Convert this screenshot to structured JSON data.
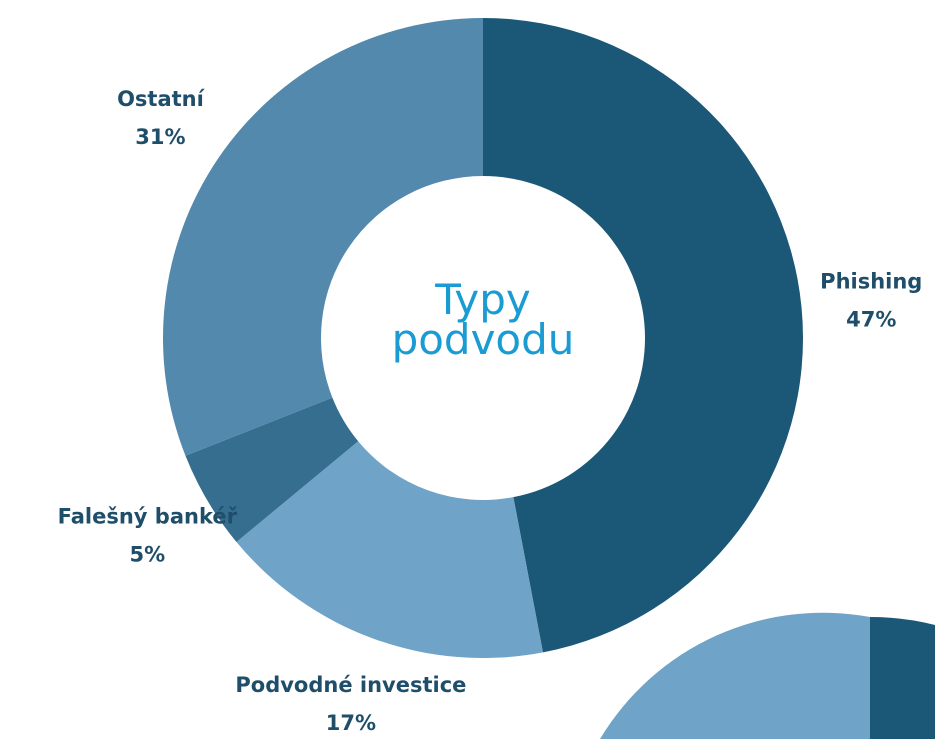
{
  "chart_data": {
    "type": "donut",
    "title": "Typy podvodu",
    "categories": [
      "Phishing",
      "Podvodné investice",
      "Falešný bankéř",
      "Ostatní"
    ],
    "values": [
      47,
      17,
      5,
      31
    ],
    "value_labels": [
      "47%",
      "17%",
      "5%",
      "31%"
    ],
    "colors": [
      "#1b5776",
      "#6fa3c7",
      "#356e8f",
      "#5389ad"
    ]
  }
}
